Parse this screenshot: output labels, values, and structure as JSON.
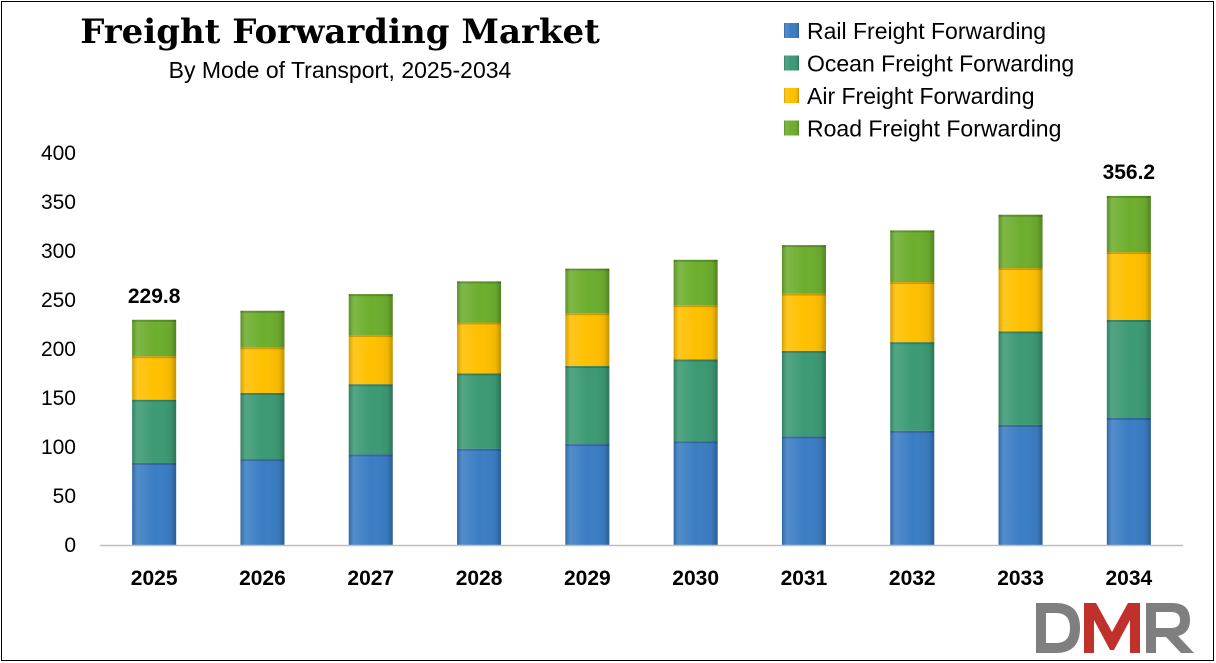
{
  "chart_data": {
    "type": "bar",
    "stacked": true,
    "title": "Freight Forwarding Market",
    "subtitle": "By Mode of Transport, 2025-2034",
    "xlabel": "",
    "ylabel": "",
    "ylim": [
      0,
      400
    ],
    "yticks": [
      0,
      50,
      100,
      150,
      200,
      250,
      300,
      350,
      400
    ],
    "grid": false,
    "legend_position": "top-right",
    "categories": [
      "2025",
      "2026",
      "2027",
      "2028",
      "2029",
      "2030",
      "2031",
      "2032",
      "2033",
      "2034"
    ],
    "series": [
      {
        "name": "Rail Freight Forwarding",
        "color": "#3B7DC4",
        "values": [
          83.7,
          87.7,
          92.4,
          98.3,
          103.0,
          106.0,
          110.8,
          116.6,
          122.5,
          129.6
        ]
      },
      {
        "name": "Ocean Freight Forwarding",
        "color": "#3C9A74",
        "values": [
          64.6,
          67.4,
          71.7,
          76.7,
          79.6,
          83.3,
          87.3,
          90.4,
          95.4,
          100.0
        ]
      },
      {
        "name": "Air Freight Forwarding",
        "color": "#FFC000",
        "values": [
          44.4,
          46.6,
          50.1,
          52.0,
          53.9,
          55.4,
          58.4,
          61.3,
          64.7,
          69.3
        ]
      },
      {
        "name": "Road Freight Forwarding",
        "color": "#6DAE2E",
        "values": [
          37.1,
          37.3,
          41.8,
          42.0,
          45.5,
          46.3,
          49.5,
          52.7,
          54.4,
          57.3
        ]
      }
    ],
    "data_labels": [
      {
        "category": "2025",
        "text": "229.8"
      },
      {
        "category": "2034",
        "text": "356.2"
      }
    ]
  },
  "logo": {
    "text": "DMR",
    "colors": [
      "#7f7f7f",
      "#c0312c"
    ]
  }
}
